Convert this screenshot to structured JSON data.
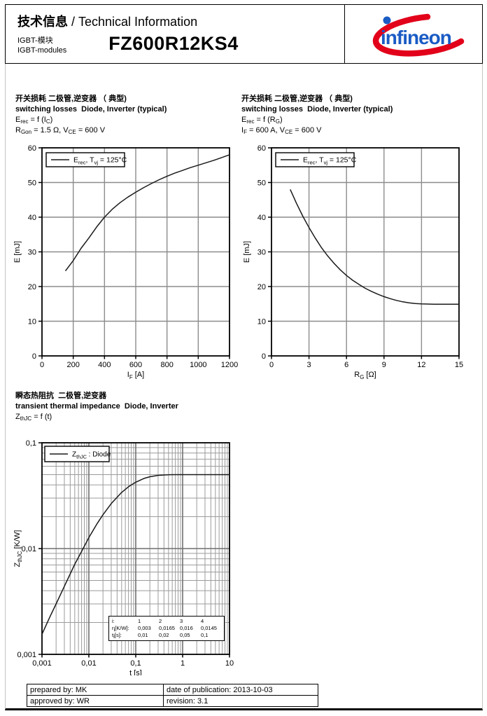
{
  "header": {
    "title_cn": "技术信息",
    "title_rest": " / Technical Information",
    "module_label_cn": "IGBT-模块",
    "module_label_en": "IGBT-modules",
    "part_number": "FZ600R12KS4",
    "logo": {
      "text": "infineon",
      "blue": "#1A5BC4",
      "red": "#E2001A"
    }
  },
  "sections": [
    {
      "title_cn": "开关损耗 二极管,逆变器 （ 典型)",
      "title_en": "switching losses  Diode, Inverter (typical)",
      "cond1": "E_{rec} = f (I_{C})",
      "cond2": "R_{Gon} = 1.5 Ω, V_{CE} = 600 V"
    },
    {
      "title_cn": "开关损耗 二极管,逆变器 （ 典型)",
      "title_en": "switching losses  Diode, Inverter (typical)",
      "cond1": "E_{rec} = f (R_{G})",
      "cond2": "I_{F} = 600 A, V_{CE} = 600 V"
    },
    {
      "title_cn": "瞬态热阻抗  二极管,逆变器",
      "title_en": "transient thermal impedance  Diode, Inverter",
      "cond1": "Z_{thJC} = f (t)",
      "cond2": ""
    }
  ],
  "chart_data": [
    {
      "type": "line",
      "title": "switching losses Diode, Inverter (typical), Erec = f(IC), RGon = 1.5 Ohm, VCE = 600 V",
      "xlabel": "I_{F} [A]",
      "ylabel": "E [mJ]",
      "xlim": [
        0,
        1200
      ],
      "ylim": [
        0,
        60
      ],
      "xticks": [
        0,
        200,
        400,
        600,
        800,
        1000,
        1200
      ],
      "yticks": [
        0,
        10,
        20,
        30,
        40,
        50,
        60
      ],
      "grid": true,
      "legend": "E_{rec}, T_{vj} = 125°C",
      "legend_position": "top-left",
      "series": [
        {
          "name": "Erec, Tvj = 125C",
          "x": [
            150,
            200,
            250,
            300,
            350,
            400,
            450,
            500,
            550,
            600,
            650,
            700,
            750,
            800,
            850,
            900,
            950,
            1000,
            1050,
            1100,
            1150,
            1200
          ],
          "y": [
            24.5,
            27.5,
            31,
            34,
            37.2,
            40,
            42.3,
            44.2,
            45.8,
            47.2,
            48.5,
            49.7,
            50.8,
            51.8,
            52.7,
            53.5,
            54.3,
            55,
            55.7,
            56.4,
            57.2,
            58
          ]
        }
      ]
    },
    {
      "type": "line",
      "title": "switching losses Diode, Inverter (typical), Erec = f(RG), IF = 600 A, VCE = 600 V",
      "xlabel": "R_{G} [Ω]",
      "ylabel": "E [mJ]",
      "xlim": [
        0,
        15
      ],
      "ylim": [
        0,
        60
      ],
      "xticks": [
        0,
        3,
        6,
        9,
        12,
        15
      ],
      "yticks": [
        0,
        10,
        20,
        30,
        40,
        50,
        60
      ],
      "grid": true,
      "legend": "E_{rec}, T_{vj} = 125°C",
      "legend_position": "top-left",
      "series": [
        {
          "name": "Erec, Tvj = 125C",
          "x": [
            1.5,
            2,
            2.5,
            3,
            3.5,
            4,
            4.5,
            5,
            5.5,
            6,
            6.5,
            7,
            7.5,
            8,
            8.5,
            9,
            9.5,
            10,
            10.5,
            11,
            11.5,
            12,
            12.5,
            13,
            13.5,
            14,
            14.5,
            15
          ],
          "y": [
            48,
            44,
            40.3,
            37,
            34,
            31.2,
            28.8,
            26.7,
            24.8,
            23.2,
            21.8,
            20.6,
            19.5,
            18.6,
            17.8,
            17.1,
            16.5,
            16,
            15.6,
            15.3,
            15.1,
            15,
            14.95,
            14.9,
            14.9,
            14.9,
            14.9,
            14.9
          ]
        }
      ]
    },
    {
      "type": "line",
      "title": "transient thermal impedance Diode, Inverter, ZthJC = f(t)",
      "xlabel": "t [s]",
      "ylabel": "Z_{thJC} [K/W]",
      "xscale": "log",
      "yscale": "log",
      "xlim": [
        0.001,
        10
      ],
      "ylim": [
        0.001,
        0.1
      ],
      "xticks": [
        0.001,
        0.01,
        0.1,
        1,
        10
      ],
      "xtick_labels": [
        "0,001",
        "0,01",
        "0,1",
        "1",
        "10"
      ],
      "yticks": [
        0.001,
        0.01,
        0.1
      ],
      "ytick_labels": [
        "0,001",
        "0,01",
        "0,1"
      ],
      "grid": true,
      "legend": "Z_{thJC} : Diode",
      "legend_position": "top-left",
      "series": [
        {
          "name": "ZthJC Diode",
          "x": [
            0.001,
            0.0015,
            0.002,
            0.003,
            0.005,
            0.007,
            0.01,
            0.015,
            0.02,
            0.03,
            0.05,
            0.07,
            0.1,
            0.15,
            0.2,
            0.3,
            0.5,
            0.7,
            1,
            2,
            5,
            10
          ],
          "y": [
            0.00155,
            0.0023,
            0.003,
            0.0044,
            0.0071,
            0.0094,
            0.0127,
            0.0172,
            0.0209,
            0.0266,
            0.0339,
            0.0384,
            0.0424,
            0.046,
            0.0477,
            0.0492,
            0.0499,
            0.05,
            0.05,
            0.05,
            0.05,
            0.05
          ]
        }
      ],
      "inset_table": {
        "rows": [
          [
            "i:",
            "1",
            "2",
            "3",
            "4"
          ],
          [
            "r_{i}[K/W]:",
            "0,003",
            "0,0165",
            "0,016",
            "0,0145"
          ],
          [
            "t_{i}[s]:",
            "0,01",
            "0,02",
            "0,05",
            "0,1"
          ]
        ]
      }
    }
  ],
  "footer": {
    "prepared": "prepared by: MK",
    "approved": "approved by: WR",
    "date": "date of publication: 2013-10-03",
    "revision": "revision: 3.1"
  }
}
